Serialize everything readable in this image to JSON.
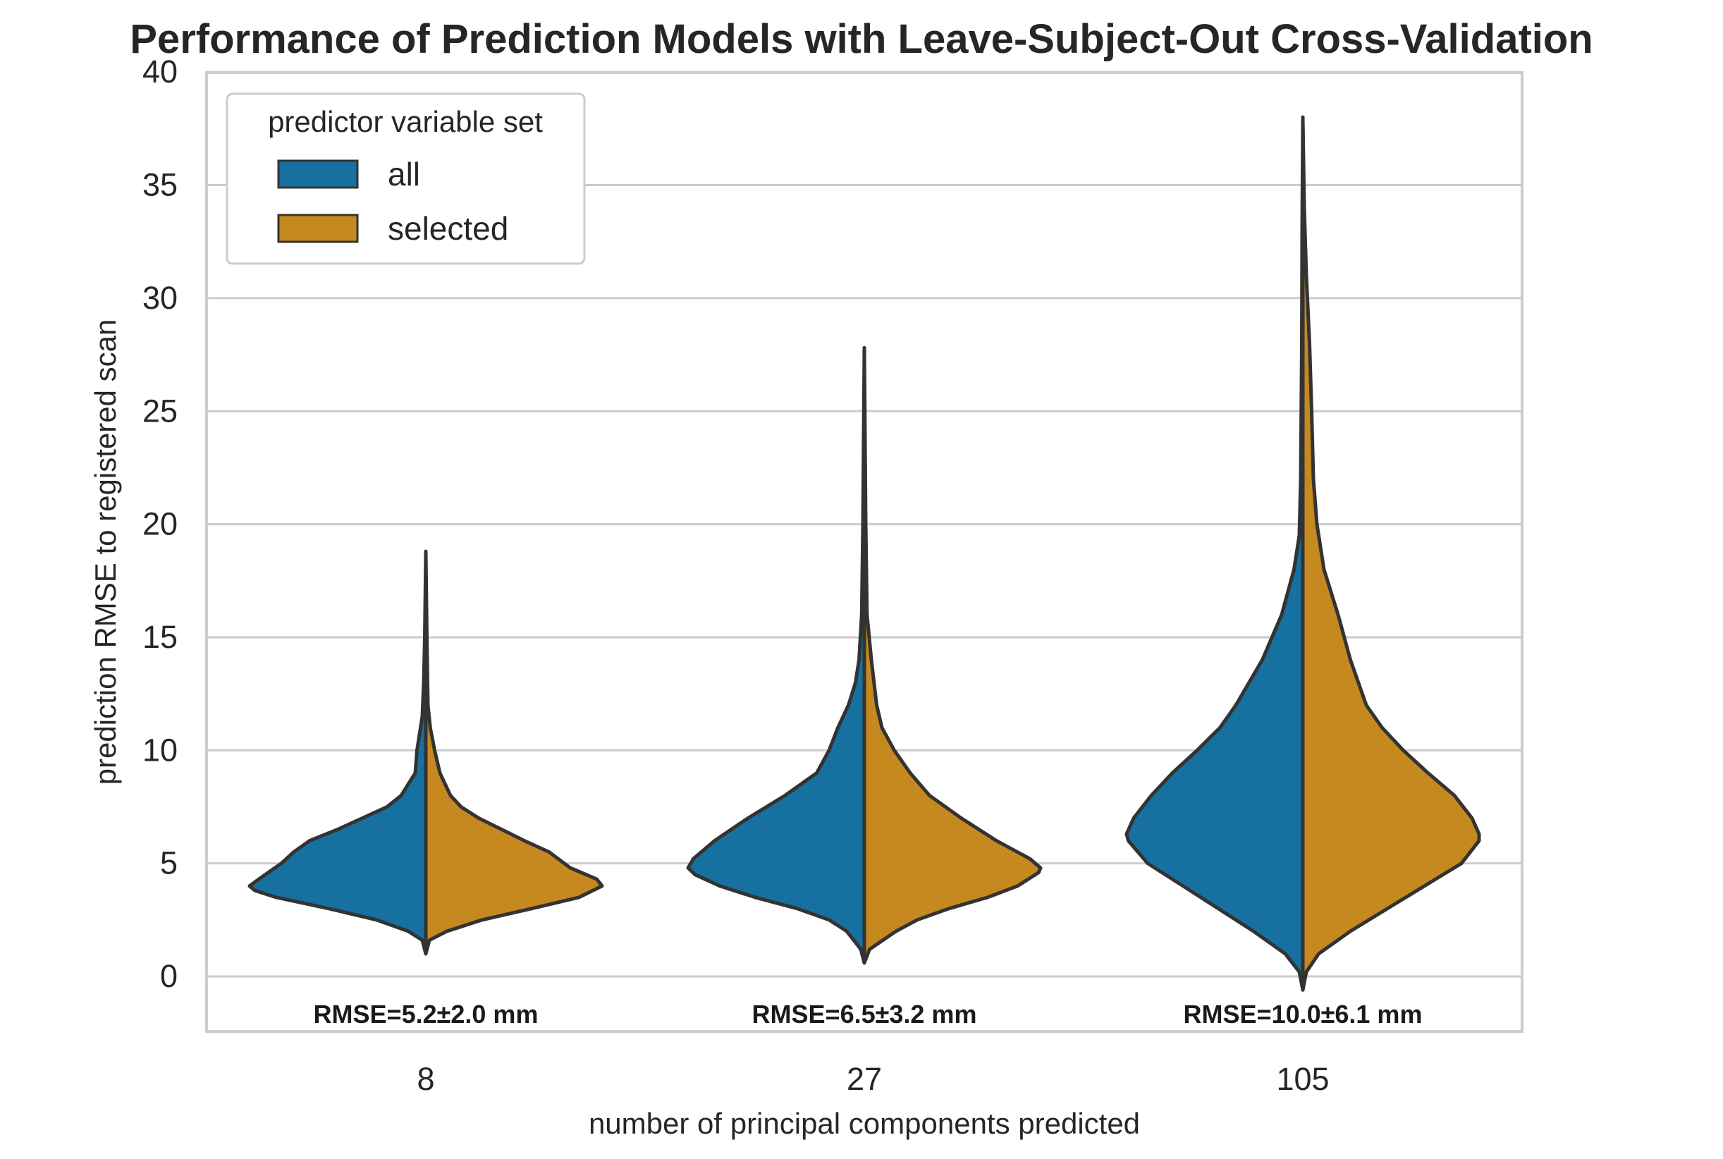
{
  "chart_data": {
    "type": "violin",
    "title": "Performance of Prediction Models with Leave-Subject-Out Cross-Validation",
    "xlabel": "number of principal components predicted",
    "ylabel": "prediction RMSE to registered scan",
    "ylim": [
      -2.5,
      40
    ],
    "yticks": [
      "0",
      "5",
      "10",
      "15",
      "20",
      "25",
      "30",
      "35",
      "40"
    ],
    "categories": [
      "8",
      "27",
      "105"
    ],
    "grid": "horizontal",
    "legend": {
      "title": "predictor variable set",
      "placement": "top-left",
      "entries": [
        "all",
        "selected"
      ]
    },
    "colors": {
      "all": "#1670a0",
      "selected": "#c5891f",
      "outline": "#333333",
      "grid": "#cccccc"
    },
    "series": [
      {
        "name": "all",
        "side": "left",
        "violins": [
          {
            "min": 1.0,
            "max": 18.8,
            "profile": [
              [
                1.0,
                0
              ],
              [
                1.6,
                0.02
              ],
              [
                2.0,
                0.1
              ],
              [
                2.5,
                0.28
              ],
              [
                3.0,
                0.55
              ],
              [
                3.5,
                0.85
              ],
              [
                3.8,
                0.97
              ],
              [
                4.0,
                1.0
              ],
              [
                4.4,
                0.93
              ],
              [
                5.0,
                0.82
              ],
              [
                5.5,
                0.75
              ],
              [
                6.0,
                0.66
              ],
              [
                6.5,
                0.5
              ],
              [
                7.0,
                0.36
              ],
              [
                7.5,
                0.22
              ],
              [
                8.0,
                0.14
              ],
              [
                9.0,
                0.06
              ],
              [
                10.0,
                0.05
              ],
              [
                10.5,
                0.04
              ],
              [
                11.5,
                0.02
              ],
              [
                13.0,
                0.012
              ],
              [
                15.0,
                0.006
              ],
              [
                18.8,
                0
              ]
            ]
          },
          {
            "min": 0.6,
            "max": 27.8,
            "profile": [
              [
                0.6,
                0
              ],
              [
                1.2,
                0.02
              ],
              [
                2.0,
                0.1
              ],
              [
                2.5,
                0.2
              ],
              [
                3.0,
                0.38
              ],
              [
                3.5,
                0.62
              ],
              [
                4.0,
                0.82
              ],
              [
                4.5,
                0.96
              ],
              [
                4.8,
                1.0
              ],
              [
                5.2,
                0.97
              ],
              [
                6.0,
                0.85
              ],
              [
                7.0,
                0.66
              ],
              [
                8.0,
                0.45
              ],
              [
                9.0,
                0.27
              ],
              [
                10.0,
                0.2
              ],
              [
                11.0,
                0.15
              ],
              [
                12.0,
                0.09
              ],
              [
                13.0,
                0.05
              ],
              [
                14.0,
                0.03
              ],
              [
                16.0,
                0.015
              ],
              [
                20.0,
                0.008
              ],
              [
                27.8,
                0
              ]
            ]
          },
          {
            "min": -0.6,
            "max": 38.0,
            "profile": [
              [
                -0.6,
                0
              ],
              [
                0.2,
                0.02
              ],
              [
                1.0,
                0.1
              ],
              [
                2.0,
                0.28
              ],
              [
                3.0,
                0.48
              ],
              [
                4.0,
                0.68
              ],
              [
                5.0,
                0.88
              ],
              [
                6.0,
                0.99
              ],
              [
                6.3,
                1.0
              ],
              [
                7.0,
                0.96
              ],
              [
                8.0,
                0.86
              ],
              [
                9.0,
                0.74
              ],
              [
                10.0,
                0.6
              ],
              [
                11.0,
                0.47
              ],
              [
                12.0,
                0.38
              ],
              [
                14.0,
                0.23
              ],
              [
                16.0,
                0.12
              ],
              [
                18.0,
                0.05
              ],
              [
                19.5,
                0.02
              ],
              [
                22.0,
                0.012
              ],
              [
                28.0,
                0.006
              ],
              [
                33.0,
                0.004
              ],
              [
                38.0,
                0
              ]
            ]
          }
        ]
      },
      {
        "name": "selected",
        "side": "right",
        "violins": [
          {
            "min": 1.0,
            "max": 18.8,
            "profile": [
              [
                1.0,
                0
              ],
              [
                1.6,
                0.02
              ],
              [
                2.0,
                0.12
              ],
              [
                2.5,
                0.32
              ],
              [
                3.0,
                0.6
              ],
              [
                3.5,
                0.87
              ],
              [
                4.0,
                1.0
              ],
              [
                4.3,
                0.97
              ],
              [
                4.8,
                0.82
              ],
              [
                5.5,
                0.7
              ],
              [
                6.0,
                0.56
              ],
              [
                6.5,
                0.43
              ],
              [
                7.0,
                0.3
              ],
              [
                7.5,
                0.2
              ],
              [
                8.0,
                0.14
              ],
              [
                9.0,
                0.08
              ],
              [
                10.0,
                0.05
              ],
              [
                11.0,
                0.025
              ],
              [
                12.0,
                0.012
              ],
              [
                15.0,
                0.006
              ],
              [
                18.8,
                0
              ]
            ]
          },
          {
            "min": 0.6,
            "max": 27.8,
            "profile": [
              [
                0.6,
                0
              ],
              [
                1.2,
                0.03
              ],
              [
                2.0,
                0.18
              ],
              [
                2.5,
                0.3
              ],
              [
                3.0,
                0.48
              ],
              [
                3.5,
                0.7
              ],
              [
                4.0,
                0.87
              ],
              [
                4.6,
                0.99
              ],
              [
                4.8,
                1.0
              ],
              [
                5.2,
                0.94
              ],
              [
                6.0,
                0.75
              ],
              [
                7.0,
                0.55
              ],
              [
                8.0,
                0.37
              ],
              [
                9.0,
                0.26
              ],
              [
                10.0,
                0.17
              ],
              [
                11.0,
                0.1
              ],
              [
                12.0,
                0.07
              ],
              [
                14.0,
                0.04
              ],
              [
                16.0,
                0.015
              ],
              [
                20.0,
                0.008
              ],
              [
                27.8,
                0
              ]
            ]
          },
          {
            "min": -0.6,
            "max": 38.0,
            "profile": [
              [
                -0.6,
                0
              ],
              [
                0.2,
                0.02
              ],
              [
                1.0,
                0.09
              ],
              [
                2.0,
                0.27
              ],
              [
                3.0,
                0.48
              ],
              [
                4.0,
                0.69
              ],
              [
                5.0,
                0.9
              ],
              [
                6.0,
                1.0
              ],
              [
                6.3,
                1.0
              ],
              [
                7.0,
                0.96
              ],
              [
                8.0,
                0.86
              ],
              [
                9.0,
                0.71
              ],
              [
                10.0,
                0.57
              ],
              [
                11.0,
                0.45
              ],
              [
                12.0,
                0.36
              ],
              [
                14.0,
                0.27
              ],
              [
                16.0,
                0.2
              ],
              [
                18.0,
                0.12
              ],
              [
                20.0,
                0.08
              ],
              [
                22.0,
                0.06
              ],
              [
                25.0,
                0.05
              ],
              [
                28.0,
                0.038
              ],
              [
                31.0,
                0.02
              ],
              [
                34.0,
                0.008
              ],
              [
                38.0,
                0
              ]
            ]
          }
        ]
      }
    ],
    "annotations": [
      "RMSE=5.2±2.0 mm",
      "RMSE=6.5±3.2 mm",
      "RMSE=10.0±6.1 mm"
    ]
  }
}
